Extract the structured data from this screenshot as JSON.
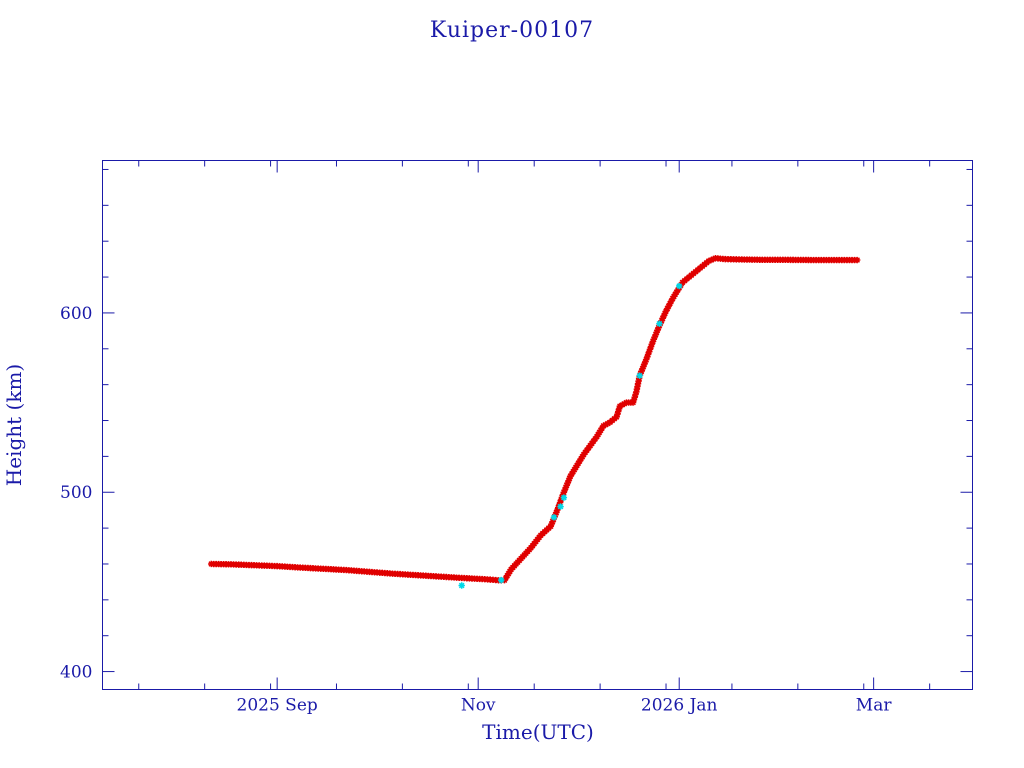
{
  "chart_data": {
    "type": "scatter",
    "title": "Kuiper-00107",
    "xlabel": "Time(UTC)",
    "ylabel": "Height (km)",
    "x_ticks": [
      {
        "date": "2025-09-01",
        "label": "2025 Sep"
      },
      {
        "date": "2025-11-01",
        "label": "Nov"
      },
      {
        "date": "2026-01-01",
        "label": "2026 Jan"
      },
      {
        "date": "2026-03-01",
        "label": "Mar"
      }
    ],
    "y_ticks": [
      {
        "value": 400,
        "label": "400"
      },
      {
        "value": 500,
        "label": "500"
      },
      {
        "value": 600,
        "label": "600"
      }
    ],
    "xlim": [
      "2025-07-10",
      "2026-03-31"
    ],
    "ylim": [
      390,
      685
    ],
    "grid": false,
    "colors": {
      "axis": "#1a1aa8",
      "primary": "#e00000",
      "secondary": "#00d8e8"
    },
    "series": [
      {
        "marker": "asterisk",
        "color": "#e00000",
        "points": [
          [
            "2025-08-12",
            460
          ],
          [
            "2025-08-18",
            459.8
          ],
          [
            "2025-08-25",
            459.3
          ],
          [
            "2025-09-01",
            458.8
          ],
          [
            "2025-09-08",
            458
          ],
          [
            "2025-09-15",
            457.3
          ],
          [
            "2025-09-22",
            456.6
          ],
          [
            "2025-09-29",
            455.6
          ],
          [
            "2025-10-06",
            454.6
          ],
          [
            "2025-10-13",
            453.8
          ],
          [
            "2025-10-20",
            453
          ],
          [
            "2025-10-27",
            452.2
          ],
          [
            "2025-11-03",
            451.5
          ],
          [
            "2025-11-08",
            450.8
          ],
          [
            "2025-11-09",
            451
          ],
          [
            "2025-11-11",
            457
          ],
          [
            "2025-11-14",
            463
          ],
          [
            "2025-11-17",
            469
          ],
          [
            "2025-11-20",
            476
          ],
          [
            "2025-11-23",
            481
          ],
          [
            "2025-11-25",
            490
          ],
          [
            "2025-11-27",
            500
          ],
          [
            "2025-11-29",
            509
          ],
          [
            "2025-12-01",
            515
          ],
          [
            "2025-12-03",
            521
          ],
          [
            "2025-12-05",
            526
          ],
          [
            "2025-12-07",
            531
          ],
          [
            "2025-12-09",
            537
          ],
          [
            "2025-12-11",
            539
          ],
          [
            "2025-12-13",
            542
          ],
          [
            "2025-12-14",
            548
          ],
          [
            "2025-12-16",
            550
          ],
          [
            "2025-12-18",
            550
          ],
          [
            "2025-12-19",
            556
          ],
          [
            "2025-12-20",
            565
          ],
          [
            "2025-12-22",
            574
          ],
          [
            "2025-12-24",
            584
          ],
          [
            "2025-12-26",
            593
          ],
          [
            "2025-12-28",
            601
          ],
          [
            "2025-12-30",
            608
          ],
          [
            "2026-01-01",
            614
          ],
          [
            "2026-01-02",
            617
          ],
          [
            "2026-01-04",
            620
          ],
          [
            "2026-01-06",
            623
          ],
          [
            "2026-01-08",
            626
          ],
          [
            "2026-01-10",
            629
          ],
          [
            "2026-01-12",
            630.5
          ],
          [
            "2026-01-15",
            630
          ],
          [
            "2026-01-20",
            629.8
          ],
          [
            "2026-01-27",
            629.6
          ],
          [
            "2026-02-03",
            629.6
          ],
          [
            "2026-02-10",
            629.5
          ],
          [
            "2026-02-17",
            629.5
          ],
          [
            "2026-02-24",
            629.5
          ]
        ]
      },
      {
        "marker": "asterisk",
        "color": "#00d8e8",
        "points": [
          [
            "2025-10-27",
            448
          ],
          [
            "2025-11-08",
            451
          ],
          [
            "2025-11-24",
            486
          ],
          [
            "2025-11-26",
            492
          ],
          [
            "2025-11-27",
            497
          ],
          [
            "2025-12-20",
            565
          ],
          [
            "2025-12-26",
            594
          ],
          [
            "2026-01-01",
            615
          ]
        ]
      }
    ]
  }
}
